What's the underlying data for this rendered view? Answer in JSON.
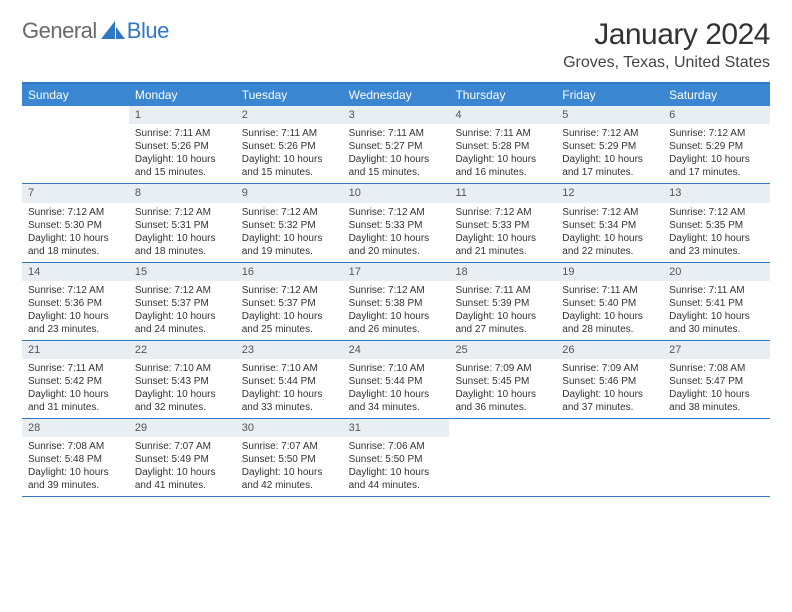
{
  "logo": {
    "text_a": "General",
    "text_b": "Blue"
  },
  "title": "January 2024",
  "location": "Groves, Texas, United States",
  "colors": {
    "header_bar": "#3a86d0",
    "border": "#2f78c4",
    "daynum_bg": "#e9eef2",
    "text": "#333333",
    "logo_gray": "#6a6a6a",
    "logo_blue": "#2f78c4",
    "bg": "#ffffff"
  },
  "days_of_week": [
    "Sunday",
    "Monday",
    "Tuesday",
    "Wednesday",
    "Thursday",
    "Friday",
    "Saturday"
  ],
  "weeks": [
    [
      null,
      {
        "n": "1",
        "sr": "Sunrise: 7:11 AM",
        "ss": "Sunset: 5:26 PM",
        "dl": "Daylight: 10 hours and 15 minutes."
      },
      {
        "n": "2",
        "sr": "Sunrise: 7:11 AM",
        "ss": "Sunset: 5:26 PM",
        "dl": "Daylight: 10 hours and 15 minutes."
      },
      {
        "n": "3",
        "sr": "Sunrise: 7:11 AM",
        "ss": "Sunset: 5:27 PM",
        "dl": "Daylight: 10 hours and 15 minutes."
      },
      {
        "n": "4",
        "sr": "Sunrise: 7:11 AM",
        "ss": "Sunset: 5:28 PM",
        "dl": "Daylight: 10 hours and 16 minutes."
      },
      {
        "n": "5",
        "sr": "Sunrise: 7:12 AM",
        "ss": "Sunset: 5:29 PM",
        "dl": "Daylight: 10 hours and 17 minutes."
      },
      {
        "n": "6",
        "sr": "Sunrise: 7:12 AM",
        "ss": "Sunset: 5:29 PM",
        "dl": "Daylight: 10 hours and 17 minutes."
      }
    ],
    [
      {
        "n": "7",
        "sr": "Sunrise: 7:12 AM",
        "ss": "Sunset: 5:30 PM",
        "dl": "Daylight: 10 hours and 18 minutes."
      },
      {
        "n": "8",
        "sr": "Sunrise: 7:12 AM",
        "ss": "Sunset: 5:31 PM",
        "dl": "Daylight: 10 hours and 18 minutes."
      },
      {
        "n": "9",
        "sr": "Sunrise: 7:12 AM",
        "ss": "Sunset: 5:32 PM",
        "dl": "Daylight: 10 hours and 19 minutes."
      },
      {
        "n": "10",
        "sr": "Sunrise: 7:12 AM",
        "ss": "Sunset: 5:33 PM",
        "dl": "Daylight: 10 hours and 20 minutes."
      },
      {
        "n": "11",
        "sr": "Sunrise: 7:12 AM",
        "ss": "Sunset: 5:33 PM",
        "dl": "Daylight: 10 hours and 21 minutes."
      },
      {
        "n": "12",
        "sr": "Sunrise: 7:12 AM",
        "ss": "Sunset: 5:34 PM",
        "dl": "Daylight: 10 hours and 22 minutes."
      },
      {
        "n": "13",
        "sr": "Sunrise: 7:12 AM",
        "ss": "Sunset: 5:35 PM",
        "dl": "Daylight: 10 hours and 23 minutes."
      }
    ],
    [
      {
        "n": "14",
        "sr": "Sunrise: 7:12 AM",
        "ss": "Sunset: 5:36 PM",
        "dl": "Daylight: 10 hours and 23 minutes."
      },
      {
        "n": "15",
        "sr": "Sunrise: 7:12 AM",
        "ss": "Sunset: 5:37 PM",
        "dl": "Daylight: 10 hours and 24 minutes."
      },
      {
        "n": "16",
        "sr": "Sunrise: 7:12 AM",
        "ss": "Sunset: 5:37 PM",
        "dl": "Daylight: 10 hours and 25 minutes."
      },
      {
        "n": "17",
        "sr": "Sunrise: 7:12 AM",
        "ss": "Sunset: 5:38 PM",
        "dl": "Daylight: 10 hours and 26 minutes."
      },
      {
        "n": "18",
        "sr": "Sunrise: 7:11 AM",
        "ss": "Sunset: 5:39 PM",
        "dl": "Daylight: 10 hours and 27 minutes."
      },
      {
        "n": "19",
        "sr": "Sunrise: 7:11 AM",
        "ss": "Sunset: 5:40 PM",
        "dl": "Daylight: 10 hours and 28 minutes."
      },
      {
        "n": "20",
        "sr": "Sunrise: 7:11 AM",
        "ss": "Sunset: 5:41 PM",
        "dl": "Daylight: 10 hours and 30 minutes."
      }
    ],
    [
      {
        "n": "21",
        "sr": "Sunrise: 7:11 AM",
        "ss": "Sunset: 5:42 PM",
        "dl": "Daylight: 10 hours and 31 minutes."
      },
      {
        "n": "22",
        "sr": "Sunrise: 7:10 AM",
        "ss": "Sunset: 5:43 PM",
        "dl": "Daylight: 10 hours and 32 minutes."
      },
      {
        "n": "23",
        "sr": "Sunrise: 7:10 AM",
        "ss": "Sunset: 5:44 PM",
        "dl": "Daylight: 10 hours and 33 minutes."
      },
      {
        "n": "24",
        "sr": "Sunrise: 7:10 AM",
        "ss": "Sunset: 5:44 PM",
        "dl": "Daylight: 10 hours and 34 minutes."
      },
      {
        "n": "25",
        "sr": "Sunrise: 7:09 AM",
        "ss": "Sunset: 5:45 PM",
        "dl": "Daylight: 10 hours and 36 minutes."
      },
      {
        "n": "26",
        "sr": "Sunrise: 7:09 AM",
        "ss": "Sunset: 5:46 PM",
        "dl": "Daylight: 10 hours and 37 minutes."
      },
      {
        "n": "27",
        "sr": "Sunrise: 7:08 AM",
        "ss": "Sunset: 5:47 PM",
        "dl": "Daylight: 10 hours and 38 minutes."
      }
    ],
    [
      {
        "n": "28",
        "sr": "Sunrise: 7:08 AM",
        "ss": "Sunset: 5:48 PM",
        "dl": "Daylight: 10 hours and 39 minutes."
      },
      {
        "n": "29",
        "sr": "Sunrise: 7:07 AM",
        "ss": "Sunset: 5:49 PM",
        "dl": "Daylight: 10 hours and 41 minutes."
      },
      {
        "n": "30",
        "sr": "Sunrise: 7:07 AM",
        "ss": "Sunset: 5:50 PM",
        "dl": "Daylight: 10 hours and 42 minutes."
      },
      {
        "n": "31",
        "sr": "Sunrise: 7:06 AM",
        "ss": "Sunset: 5:50 PM",
        "dl": "Daylight: 10 hours and 44 minutes."
      },
      null,
      null,
      null
    ]
  ]
}
